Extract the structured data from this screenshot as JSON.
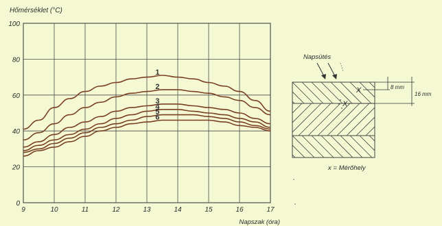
{
  "chart_data": {
    "type": "line",
    "ylabel": "Hőmérséklet (°C)",
    "xlabel": "Napszak (óra)",
    "xlim": [
      9,
      17
    ],
    "ylim": [
      0,
      100
    ],
    "x_ticks": [
      9,
      10,
      11,
      12,
      13,
      14,
      15,
      16,
      17
    ],
    "y_ticks": [
      0,
      20,
      40,
      60,
      80,
      100
    ],
    "grid": true,
    "series": [
      {
        "name": "1",
        "x": [
          9,
          9.5,
          10,
          10.5,
          11,
          11.5,
          12,
          12.5,
          13,
          13.5,
          14,
          14.5,
          15,
          15.5,
          16,
          16.5,
          17
        ],
        "values": [
          41,
          46,
          53,
          58,
          62,
          65,
          67,
          69,
          70,
          71,
          70,
          69,
          67,
          65,
          62,
          57,
          51
        ]
      },
      {
        "name": "2",
        "x": [
          9,
          9.5,
          10,
          10.5,
          11,
          11.5,
          12,
          12.5,
          13,
          13.5,
          14,
          14.5,
          15,
          15.5,
          16,
          16.5,
          17
        ],
        "values": [
          35,
          39,
          44,
          49,
          53,
          56,
          59,
          61,
          62,
          63,
          63,
          62,
          61,
          59,
          57,
          53,
          49
        ]
      },
      {
        "name": "3",
        "x": [
          9,
          9.5,
          10,
          10.5,
          11,
          11.5,
          12,
          12.5,
          13,
          13.5,
          14,
          14.5,
          15,
          15.5,
          16,
          16.5,
          17
        ],
        "values": [
          31,
          34,
          38,
          42,
          45,
          48,
          51,
          53,
          54,
          55,
          55,
          54,
          53,
          52,
          50,
          47,
          44
        ]
      },
      {
        "name": "4",
        "x": [
          9,
          9.5,
          10,
          10.5,
          11,
          11.5,
          12,
          12.5,
          13,
          13.5,
          14,
          14.5,
          15,
          15.5,
          16,
          16.5,
          17
        ],
        "values": [
          29,
          32,
          35,
          38,
          41,
          44,
          47,
          49,
          51,
          52,
          52,
          51,
          50,
          49,
          47,
          45,
          42
        ]
      },
      {
        "name": "5",
        "x": [
          9,
          9.5,
          10,
          10.5,
          11,
          11.5,
          12,
          12.5,
          13,
          13.5,
          14,
          14.5,
          15,
          15.5,
          16,
          16.5,
          17
        ],
        "values": [
          28,
          30,
          33,
          36,
          39,
          42,
          44,
          46,
          48,
          49,
          49,
          49,
          48,
          47,
          45,
          43,
          41
        ]
      },
      {
        "name": "6",
        "x": [
          9,
          9.5,
          10,
          10.5,
          11,
          11.5,
          12,
          12.5,
          13,
          13.5,
          14,
          14.5,
          15,
          15.5,
          16,
          16.5,
          17
        ],
        "values": [
          26,
          29,
          31,
          34,
          37,
          40,
          42,
          44,
          45,
          46,
          46,
          46,
          46,
          45,
          43,
          42,
          40
        ]
      }
    ]
  },
  "diagram": {
    "sun_label": "Napsütés",
    "depth1": "8 mm",
    "depth2": "16 mm",
    "marker": "X",
    "legend": "x = Mérőhely"
  }
}
